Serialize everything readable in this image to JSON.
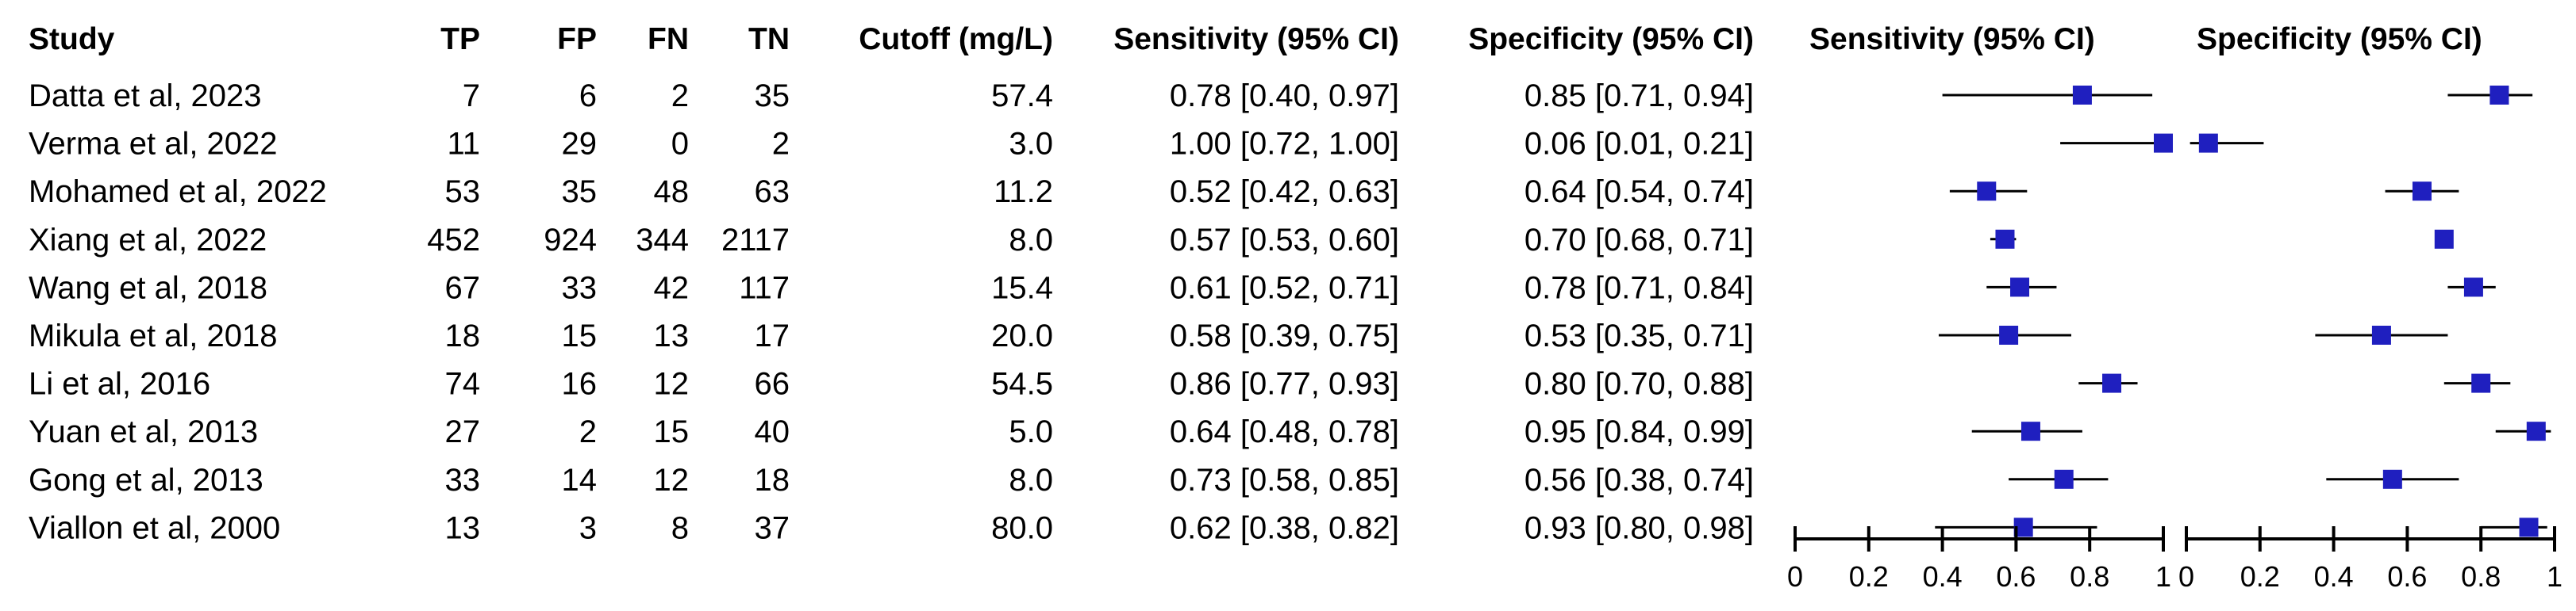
{
  "chart_data": {
    "type": "forest",
    "columns": [
      "Study",
      "TP",
      "FP",
      "FN",
      "TN",
      "Cutoff (mg/L)",
      "Sensitivity (95% CI)",
      "Specificity (95% CI)"
    ],
    "plot_headers": [
      "Sensitivity (95% CI)",
      "Specificity (95% CI)"
    ],
    "xlim": [
      0,
      1
    ],
    "x_ticks": [
      "0",
      "0.2",
      "0.4",
      "0.6",
      "0.8",
      "1"
    ],
    "marker_color": "#1f1fbf",
    "studies": [
      {
        "study": "Datta et al, 2023",
        "tp": "7",
        "fp": "6",
        "fn": "2",
        "tn": "35",
        "cutoff": "57.4",
        "sens_text": "0.78 [0.40, 0.97]",
        "spec_text": "0.85 [0.71, 0.94]",
        "sens": 0.78,
        "sens_lo": 0.4,
        "sens_hi": 0.97,
        "spec": 0.85,
        "spec_lo": 0.71,
        "spec_hi": 0.94
      },
      {
        "study": "Verma et al, 2022",
        "tp": "11",
        "fp": "29",
        "fn": "0",
        "tn": "2",
        "cutoff": "3.0",
        "sens_text": "1.00 [0.72, 1.00]",
        "spec_text": "0.06 [0.01, 0.21]",
        "sens": 1.0,
        "sens_lo": 0.72,
        "sens_hi": 1.0,
        "spec": 0.06,
        "spec_lo": 0.01,
        "spec_hi": 0.21
      },
      {
        "study": "Mohamed et al, 2022",
        "tp": "53",
        "fp": "35",
        "fn": "48",
        "tn": "63",
        "cutoff": "11.2",
        "sens_text": "0.52 [0.42, 0.63]",
        "spec_text": "0.64 [0.54, 0.74]",
        "sens": 0.52,
        "sens_lo": 0.42,
        "sens_hi": 0.63,
        "spec": 0.64,
        "spec_lo": 0.54,
        "spec_hi": 0.74
      },
      {
        "study": "Xiang et al, 2022",
        "tp": "452",
        "fp": "924",
        "fn": "344",
        "tn": "2117",
        "cutoff": "8.0",
        "sens_text": "0.57 [0.53, 0.60]",
        "spec_text": "0.70 [0.68, 0.71]",
        "sens": 0.57,
        "sens_lo": 0.53,
        "sens_hi": 0.6,
        "spec": 0.7,
        "spec_lo": 0.68,
        "spec_hi": 0.71
      },
      {
        "study": "Wang et al, 2018",
        "tp": "67",
        "fp": "33",
        "fn": "42",
        "tn": "117",
        "cutoff": "15.4",
        "sens_text": "0.61 [0.52, 0.71]",
        "spec_text": "0.78 [0.71, 0.84]",
        "sens": 0.61,
        "sens_lo": 0.52,
        "sens_hi": 0.71,
        "spec": 0.78,
        "spec_lo": 0.71,
        "spec_hi": 0.84
      },
      {
        "study": "Mikula et al, 2018",
        "tp": "18",
        "fp": "15",
        "fn": "13",
        "tn": "17",
        "cutoff": "20.0",
        "sens_text": "0.58 [0.39, 0.75]",
        "spec_text": "0.53 [0.35, 0.71]",
        "sens": 0.58,
        "sens_lo": 0.39,
        "sens_hi": 0.75,
        "spec": 0.53,
        "spec_lo": 0.35,
        "spec_hi": 0.71
      },
      {
        "study": "Li et al, 2016",
        "tp": "74",
        "fp": "16",
        "fn": "12",
        "tn": "66",
        "cutoff": "54.5",
        "sens_text": "0.86 [0.77, 0.93]",
        "spec_text": "0.80 [0.70, 0.88]",
        "sens": 0.86,
        "sens_lo": 0.77,
        "sens_hi": 0.93,
        "spec": 0.8,
        "spec_lo": 0.7,
        "spec_hi": 0.88
      },
      {
        "study": "Yuan et al, 2013",
        "tp": "27",
        "fp": "2",
        "fn": "15",
        "tn": "40",
        "cutoff": "5.0",
        "sens_text": "0.64 [0.48, 0.78]",
        "spec_text": "0.95 [0.84, 0.99]",
        "sens": 0.64,
        "sens_lo": 0.48,
        "sens_hi": 0.78,
        "spec": 0.95,
        "spec_lo": 0.84,
        "spec_hi": 0.99
      },
      {
        "study": "Gong et al, 2013",
        "tp": "33",
        "fp": "14",
        "fn": "12",
        "tn": "18",
        "cutoff": "8.0",
        "sens_text": "0.73 [0.58, 0.85]",
        "spec_text": "0.56 [0.38, 0.74]",
        "sens": 0.73,
        "sens_lo": 0.58,
        "sens_hi": 0.85,
        "spec": 0.56,
        "spec_lo": 0.38,
        "spec_hi": 0.74
      },
      {
        "study": "Viallon et al, 2000",
        "tp": "13",
        "fp": "3",
        "fn": "8",
        "tn": "37",
        "cutoff": "80.0",
        "sens_text": "0.62 [0.38, 0.82]",
        "spec_text": "0.93 [0.80, 0.98]",
        "sens": 0.62,
        "sens_lo": 0.38,
        "sens_hi": 0.82,
        "spec": 0.93,
        "spec_lo": 0.8,
        "spec_hi": 0.98
      }
    ]
  }
}
